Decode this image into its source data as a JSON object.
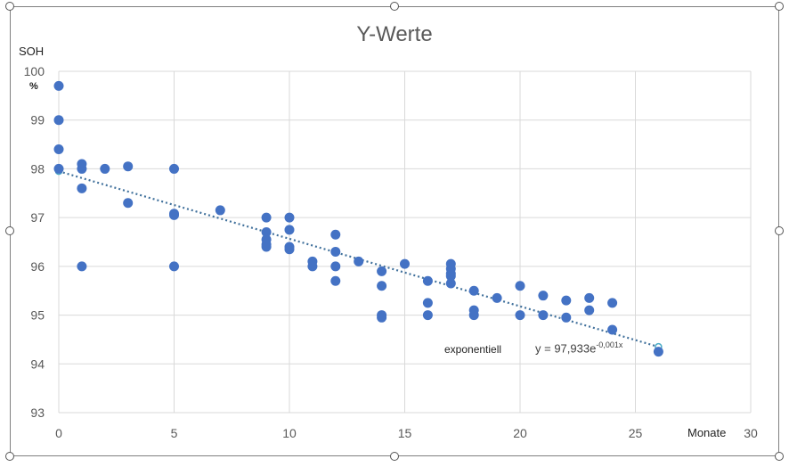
{
  "chart_data": {
    "type": "scatter",
    "title": "Y-Werte",
    "xlabel": "Monate",
    "ylabel": "SOH",
    "yunit": "%",
    "xlim": [
      0,
      30
    ],
    "ylim": [
      93,
      100
    ],
    "xticks": [
      0,
      5,
      10,
      15,
      20,
      25,
      30
    ],
    "yticks": [
      93,
      94,
      95,
      96,
      97,
      98,
      99,
      100
    ],
    "grid": true,
    "marker_color": "#4472C4",
    "points": [
      [
        0,
        99.7
      ],
      [
        0,
        99.0
      ],
      [
        0,
        98.4
      ],
      [
        0,
        98.0
      ],
      [
        1,
        98.1
      ],
      [
        1,
        98.0
      ],
      [
        1,
        97.6
      ],
      [
        1,
        96.0
      ],
      [
        2,
        98.0
      ],
      [
        3,
        98.05
      ],
      [
        3,
        97.3
      ],
      [
        5,
        98.0
      ],
      [
        5,
        97.05
      ],
      [
        5,
        97.08
      ],
      [
        5,
        96.0
      ],
      [
        7,
        97.15
      ],
      [
        9,
        97.0
      ],
      [
        9,
        96.7
      ],
      [
        9,
        96.55
      ],
      [
        9,
        96.45
      ],
      [
        9,
        96.4
      ],
      [
        10,
        97.0
      ],
      [
        10,
        96.75
      ],
      [
        10,
        96.4
      ],
      [
        10,
        96.35
      ],
      [
        11,
        96.1
      ],
      [
        11,
        96.0
      ],
      [
        12,
        96.65
      ],
      [
        12,
        96.3
      ],
      [
        12,
        96.0
      ],
      [
        12,
        95.7
      ],
      [
        13,
        96.1
      ],
      [
        14,
        95.9
      ],
      [
        14,
        95.6
      ],
      [
        14,
        95.0
      ],
      [
        14,
        94.95
      ],
      [
        15,
        96.05
      ],
      [
        16,
        95.7
      ],
      [
        16,
        95.25
      ],
      [
        16,
        95.0
      ],
      [
        17,
        96.05
      ],
      [
        17,
        95.95
      ],
      [
        17,
        95.85
      ],
      [
        17,
        95.8
      ],
      [
        17,
        95.65
      ],
      [
        18,
        95.5
      ],
      [
        18,
        95.1
      ],
      [
        18,
        95.0
      ],
      [
        19,
        95.35
      ],
      [
        20,
        95.6
      ],
      [
        20,
        95.0
      ],
      [
        21,
        95.4
      ],
      [
        21,
        95.0
      ],
      [
        22,
        95.3
      ],
      [
        22,
        94.95
      ],
      [
        23,
        95.35
      ],
      [
        23,
        95.1
      ],
      [
        24,
        95.25
      ],
      [
        24,
        94.7
      ],
      [
        26,
        94.25
      ]
    ],
    "trendline": {
      "type_label": "exponentiell",
      "equation": "y = 97,933e",
      "exponent": "-0,001x",
      "color": "#41719C",
      "start": [
        0,
        97.95
      ],
      "end": [
        26,
        94.35
      ]
    }
  }
}
